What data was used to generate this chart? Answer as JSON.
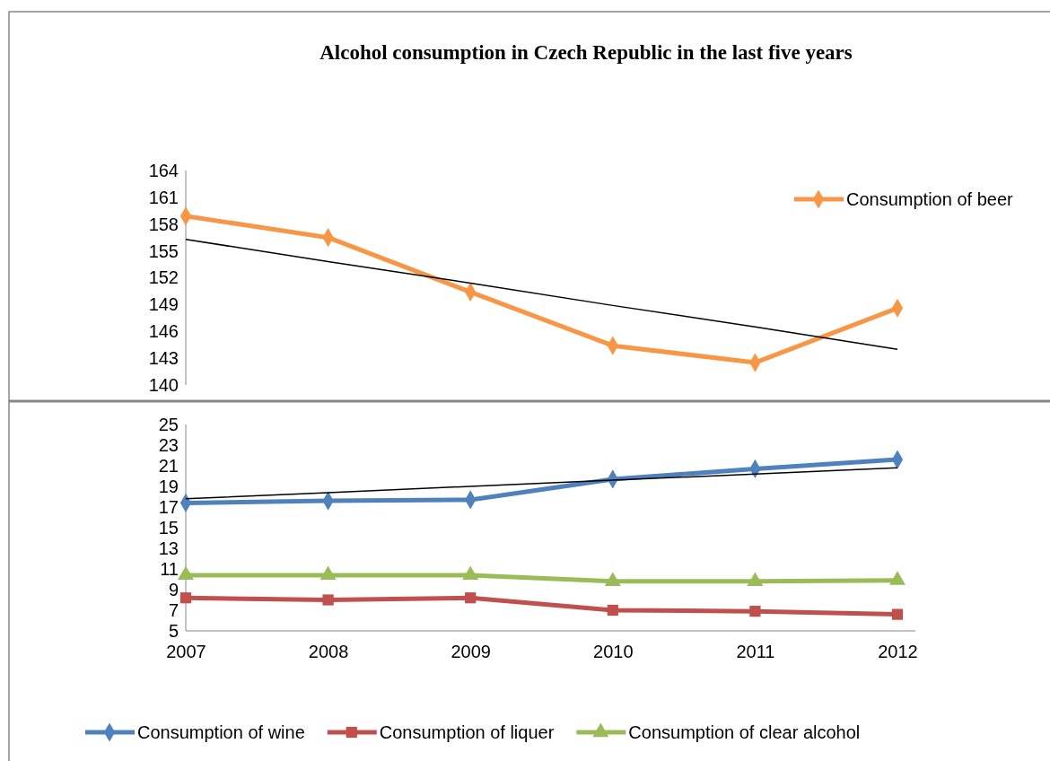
{
  "chart_data": [
    {
      "type": "line",
      "title": "Alcohol consumption in Czech Republic in the last five years",
      "categories": [
        "2007",
        "2008",
        "2009",
        "2010",
        "2011",
        "2012"
      ],
      "ylim": [
        140,
        164
      ],
      "yticks": [
        140,
        143,
        146,
        149,
        152,
        155,
        158,
        161,
        164
      ],
      "tick_labels": "y",
      "legend": "right",
      "grid": false,
      "series": [
        {
          "name": "Consumption of beer",
          "color": "#f79646",
          "values": [
            158.9,
            156.5,
            150.4,
            144.4,
            142.5,
            148.6
          ],
          "marker": "diamond"
        },
        {
          "type": "line",
          "color": "#000000",
          "values": [
            156.3,
            153.8,
            151.4,
            148.9,
            146.5,
            144.0
          ],
          "marker": "none"
        }
      ]
    },
    {
      "type": "line",
      "categories": [
        "2007",
        "2008",
        "2009",
        "2010",
        "2011",
        "2012"
      ],
      "ylim": [
        5,
        25
      ],
      "yticks": [
        5,
        7,
        9,
        11,
        13,
        15,
        17,
        19,
        21,
        23,
        25
      ],
      "legend": "bottom",
      "grid": false,
      "series": [
        {
          "name": "Consumption of wine",
          "color": "#4f81bd",
          "values": [
            17.4,
            17.6,
            17.7,
            19.7,
            20.7,
            21.6
          ],
          "marker": "diamond"
        },
        {
          "name": "Consumption of liquer",
          "color": "#c0504d",
          "values": [
            8.2,
            8.0,
            8.2,
            7.0,
            6.9,
            6.6
          ],
          "marker": "square"
        },
        {
          "name": "Consumption of clear alcohol",
          "color": "#9bbb59",
          "values": [
            10.4,
            10.4,
            10.4,
            9.8,
            9.8,
            9.9
          ],
          "marker": "triangle"
        },
        {
          "type": "line",
          "color": "#000000",
          "values": [
            17.8,
            18.4,
            19.0,
            19.6,
            20.2,
            20.8
          ],
          "marker": "none"
        }
      ]
    }
  ]
}
